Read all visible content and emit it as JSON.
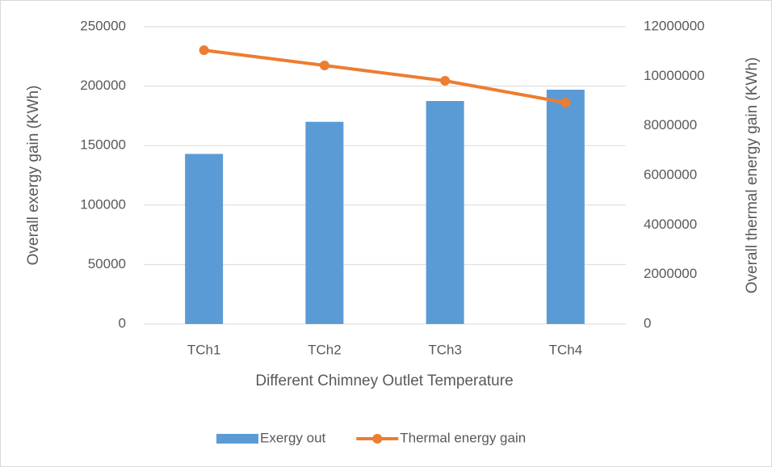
{
  "chart_data": {
    "type": "bar",
    "x_label": "Different Chimney Outlet Temperature",
    "y_label": "Overall exergy gain (KWh)",
    "y2_label": "Overall thermal energy gain (KWh)",
    "categories": [
      "TCh1",
      "TCh2",
      "TCh3",
      "TCh4"
    ],
    "series": [
      {
        "name": "Exergy out",
        "color": "#5b9bd5",
        "type": "bar",
        "values": [
          143000,
          170000,
          187500,
          197000
        ]
      },
      {
        "name": "Thermal energy gain",
        "color": "#ed7d31",
        "type": "line",
        "axis": "y2",
        "values": [
          11050000,
          10435000,
          9815000,
          8935000
        ]
      }
    ],
    "ylim": [
      0,
      250000
    ],
    "yticks": [
      0,
      50000,
      100000,
      150000,
      200000,
      250000
    ],
    "y2lim": [
      0,
      12000000
    ],
    "y2ticks": [
      0,
      2000000,
      4000000,
      6000000,
      8000000,
      10000000,
      12000000
    ],
    "grid": true,
    "legend": "bottom"
  }
}
